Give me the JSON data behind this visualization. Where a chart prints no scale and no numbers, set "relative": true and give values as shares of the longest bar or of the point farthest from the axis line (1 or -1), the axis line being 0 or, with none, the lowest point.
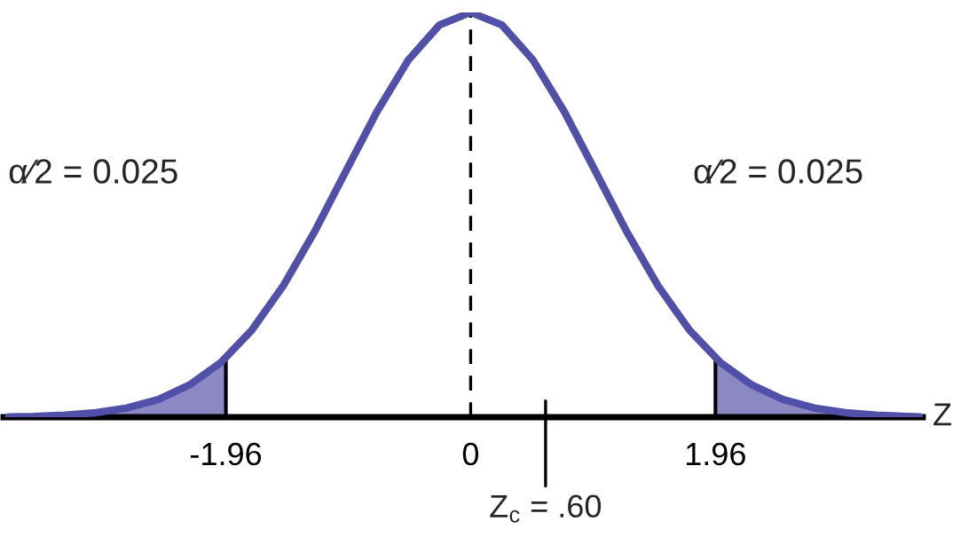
{
  "chart_data": {
    "type": "line",
    "relative": true,
    "xlabel": "Z",
    "x": [
      -3.7,
      -3.5,
      -3.25,
      -3,
      -2.75,
      -2.5,
      -2.25,
      -2,
      -1.75,
      -1.5,
      -1.25,
      -1,
      -0.75,
      -0.5,
      -0.25,
      0,
      0.25,
      0.5,
      0.75,
      1,
      1.25,
      1.5,
      1.75,
      2,
      2.25,
      2.5,
      2.75,
      3,
      3.25,
      3.5,
      3.6
    ],
    "xlim": [
      -3.74,
      3.62
    ],
    "xticks": [
      -1.96,
      0,
      1.96
    ],
    "grid": false,
    "legend": false,
    "series": [
      {
        "color": "#5050a8",
        "values": [
          0.001,
          0.002,
          0.005,
          0.011,
          0.023,
          0.044,
          0.08,
          0.135,
          0.216,
          0.325,
          0.458,
          0.607,
          0.755,
          0.882,
          0.969,
          1,
          0.969,
          0.882,
          0.755,
          0.607,
          0.458,
          0.325,
          0.216,
          0.135,
          0.08,
          0.044,
          0.023,
          0.011,
          0.005,
          0.002,
          0.001
        ]
      },
      {
        "type": "area",
        "color": "#8c88c4",
        "x": [
          -3.7,
          -3.5,
          -3.25,
          -3,
          -2.75,
          -2.5,
          -2.25,
          -2,
          -1.96
        ],
        "values": [
          0.001,
          0.002,
          0.005,
          0.011,
          0.023,
          0.044,
          0.08,
          0.135,
          0.146
        ]
      },
      {
        "type": "area",
        "color": "#8c88c4",
        "x": [
          1.96,
          2,
          2.25,
          2.5,
          2.75,
          3,
          3.25,
          3.5,
          3.6
        ],
        "values": [
          0.146,
          0.135,
          0.08,
          0.044,
          0.023,
          0.011,
          0.005,
          0.002,
          0.001
        ]
      },
      {
        "type": "line",
        "color": "#000000",
        "x": [
          -1.96,
          -1.96
        ],
        "values": [
          0,
          0.146
        ]
      },
      {
        "type": "line",
        "color": "#000000",
        "x": [
          1.96,
          1.96
        ],
        "values": [
          0,
          0.146
        ]
      }
    ],
    "ref_lines": [
      {
        "axis": "x",
        "value": 0,
        "color": "#000000",
        "line_style": "dashed"
      },
      {
        "axis": "x",
        "value": 0.6,
        "label": "Z$_{c}$ = .60",
        "color": "#000000"
      }
    ],
    "annotations": [
      "α⁄2 = 0.025",
      "α⁄2 = 0.025"
    ]
  }
}
